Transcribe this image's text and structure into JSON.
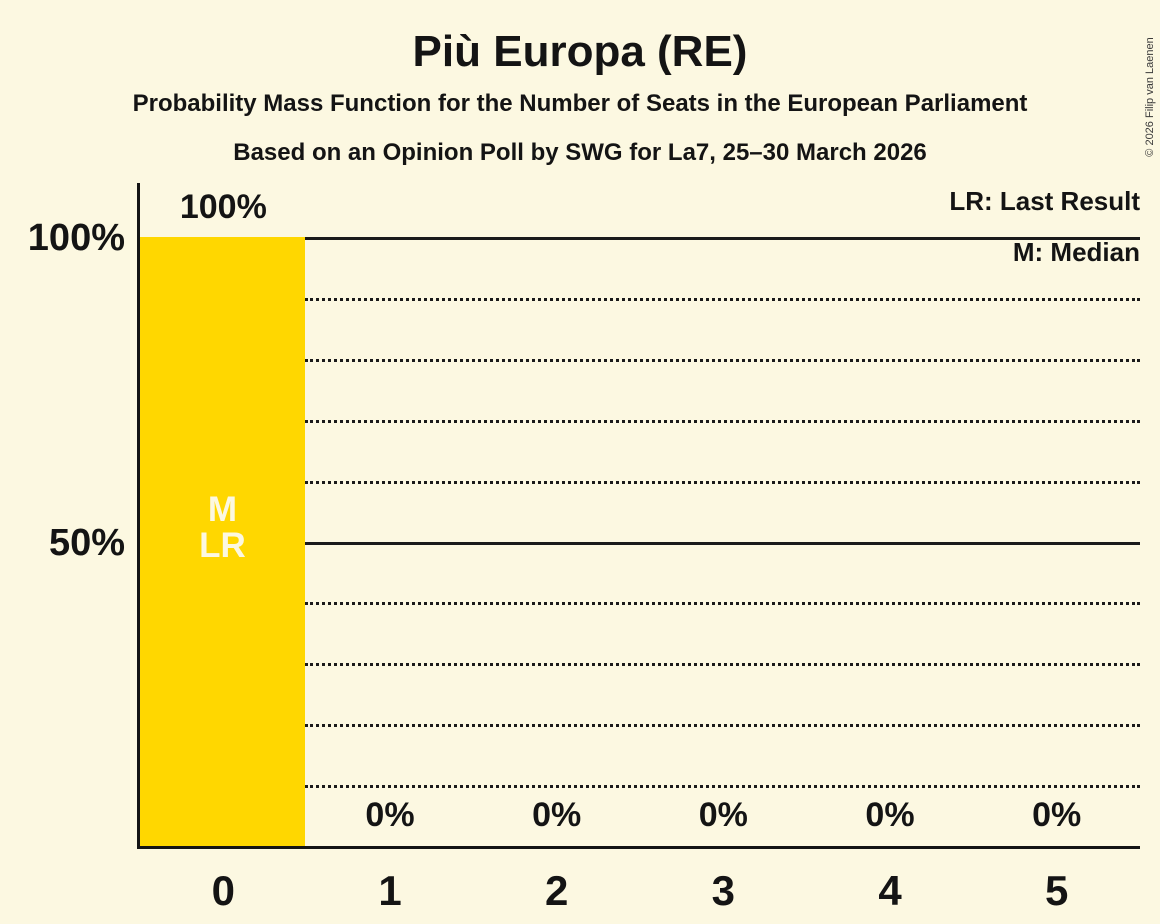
{
  "header": {
    "title": "Più Europa (RE)",
    "subtitle1": "Probability Mass Function for the Number of Seats in the European Parliament",
    "subtitle2": "Based on an Opinion Poll by SWG for La7, 25–30 March 2026"
  },
  "legend": {
    "last_result": "LR: Last Result",
    "median": "M: Median"
  },
  "copyright": "© 2026 Filip van Laenen",
  "colors": {
    "background": "#FCF8E1",
    "bar": "#FFD700",
    "text": "#141414",
    "bar_label_text": "#FCF8E1",
    "copyright_text": "#3a3a3a"
  },
  "chart_data": {
    "type": "bar",
    "title": "Più Europa (RE)",
    "subtitle": "Probability Mass Function for the Number of Seats in the European Parliament",
    "source_note": "Based on an Opinion Poll by SWG for La7, 25–30 March 2026",
    "categories": [
      "0",
      "1",
      "2",
      "3",
      "4",
      "5"
    ],
    "values": [
      100,
      0,
      0,
      0,
      0,
      0
    ],
    "value_labels": [
      "100%",
      "0%",
      "0%",
      "0%",
      "0%",
      "0%"
    ],
    "xlabel": "",
    "ylabel": "",
    "ylim": [
      0,
      100
    ],
    "yticks": [
      100,
      50
    ],
    "ytick_labels": [
      "100%",
      "50%"
    ],
    "gridlines": {
      "solid": [
        100,
        50
      ],
      "dotted": [
        90,
        80,
        70,
        60,
        40,
        30,
        20,
        10
      ]
    },
    "grid": "horizontal",
    "legend_position": "top-right",
    "annotated_category": "0",
    "bar_annotations": [
      "M",
      "LR"
    ],
    "annotation_meanings": {
      "M": "Median",
      "LR": "Last Result"
    }
  }
}
